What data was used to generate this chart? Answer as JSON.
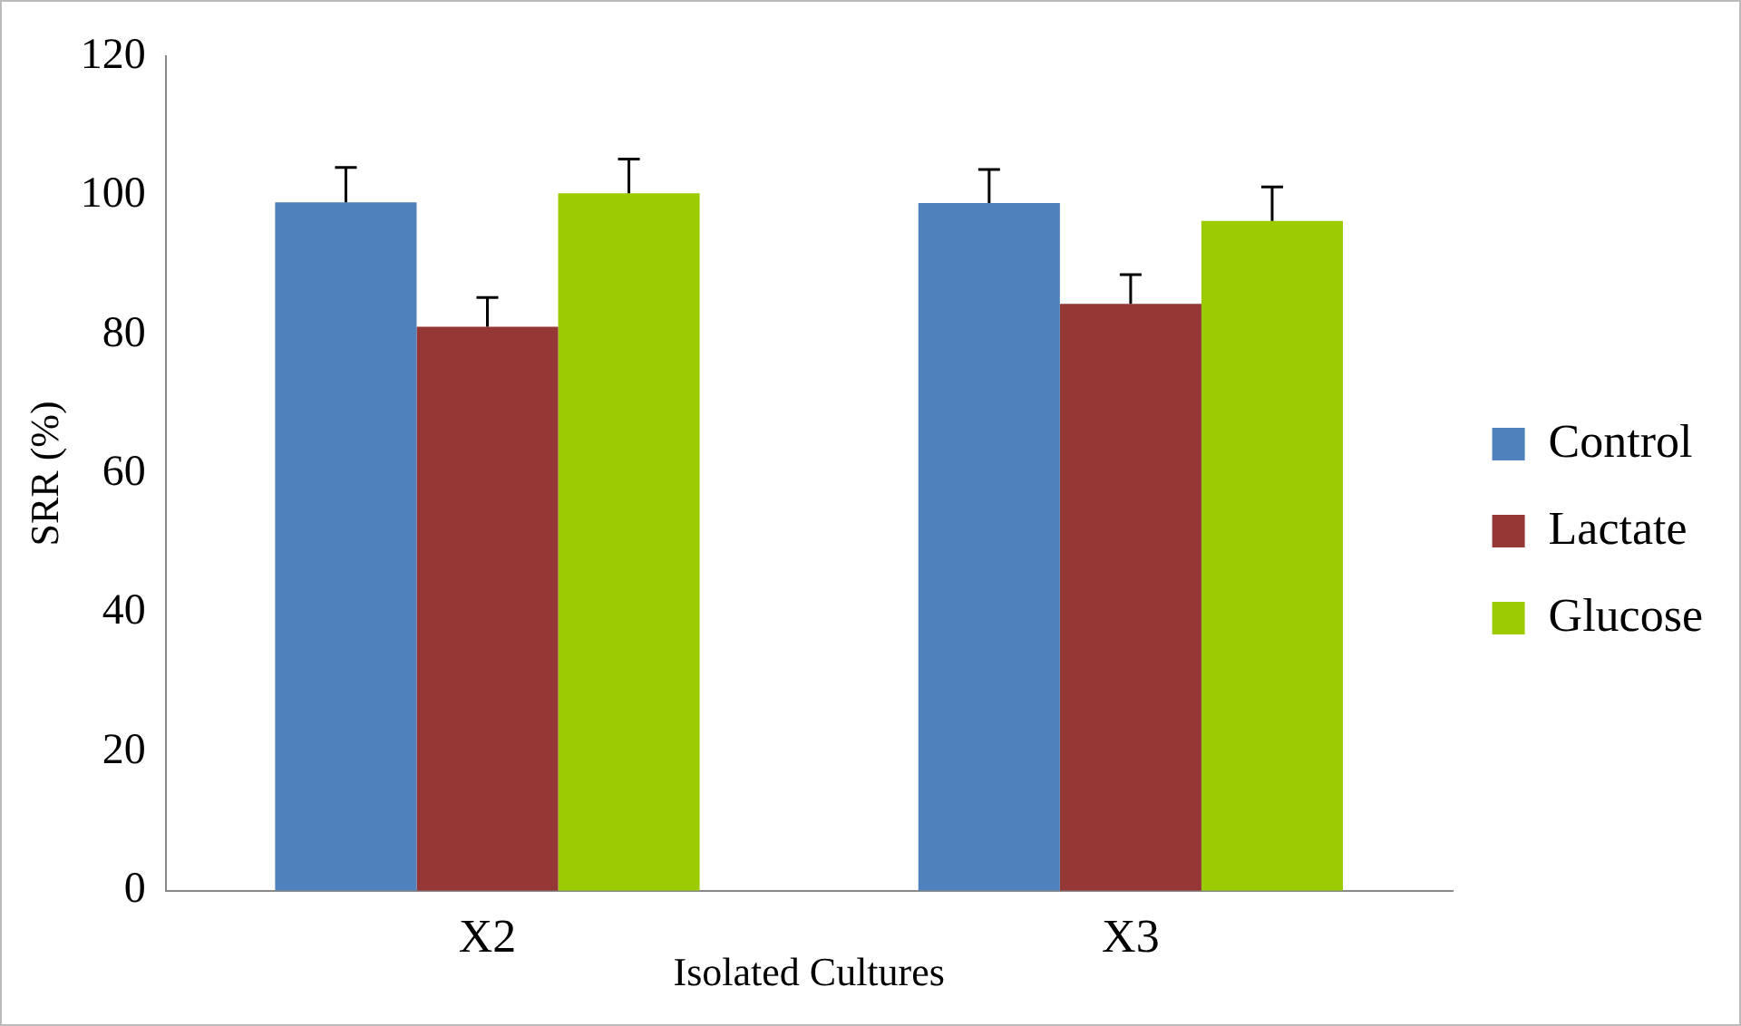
{
  "chart_data": {
    "type": "bar",
    "xlabel": "Isolated Cultures",
    "ylabel": "SRR (%)",
    "categories": [
      "X2",
      "X3"
    ],
    "series": [
      {
        "name": "Control",
        "color": "#4f81bd",
        "values": [
          99,
          98.9
        ],
        "errors": [
          [
            99,
            104
          ],
          [
            98.9,
            103.7
          ]
        ]
      },
      {
        "name": "Lactate",
        "color": "#953735",
        "values": [
          81.1,
          84.4
        ],
        "errors": [
          [
            81.1,
            85.3
          ],
          [
            84.4,
            88.6
          ]
        ]
      },
      {
        "name": "Glucose",
        "color": "#9bcb00",
        "values": [
          100.3,
          96.3
        ],
        "errors": [
          [
            100.3,
            105.2
          ],
          [
            96.3,
            101.2
          ]
        ]
      }
    ],
    "ylim": [
      0,
      120
    ],
    "yticks": [
      0,
      20,
      40,
      60,
      80,
      100,
      120
    ],
    "grid": false,
    "legend": "right"
  }
}
